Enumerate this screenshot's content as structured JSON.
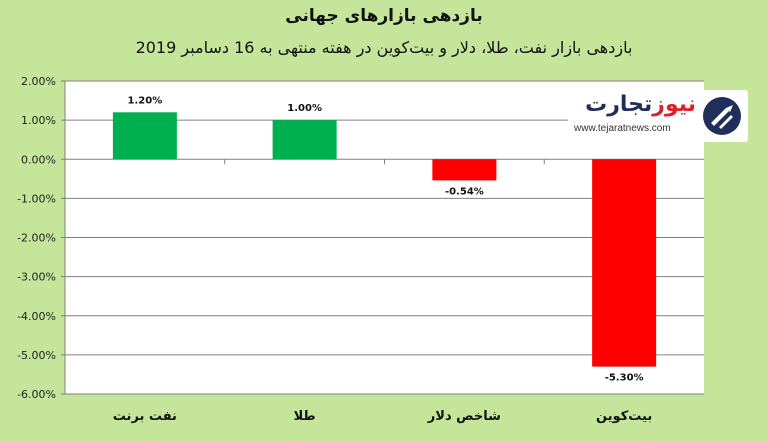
{
  "title": "بازدهی بازارهای جهانی",
  "subtitle": "بازدهی بازار نفت، طلا، دلار و بیت‌کوین در هفته منتهی به 16 دسامبر 2019",
  "logo": {
    "name_part1": "تجارت",
    "name_part2": "نیوز",
    "url": "www.tejaratnews.com",
    "icon": "tejaratnews-logo-icon"
  },
  "colors": {
    "positive": "#00b050",
    "negative": "#ff0000",
    "background": "#c5e69a",
    "plot_background": "#ffffff",
    "gridline": "#808080"
  },
  "chart_data": {
    "type": "bar",
    "categories": [
      "نفت برنت",
      "طلا",
      "شاخص دلار",
      "بیت‌کوین"
    ],
    "values": [
      1.2,
      1.0,
      -0.54,
      -5.3
    ],
    "data_labels": [
      "1.20%",
      "1.00%",
      "-0.54%",
      "-5.30%"
    ],
    "yticks": [
      "2.00%",
      "1.00%",
      "0.00%",
      "-1.00%",
      "-2.00%",
      "-3.00%",
      "-4.00%",
      "-5.00%",
      "-6.00%"
    ],
    "ylim": [
      -6,
      2
    ],
    "grid": true,
    "legend": "none"
  }
}
